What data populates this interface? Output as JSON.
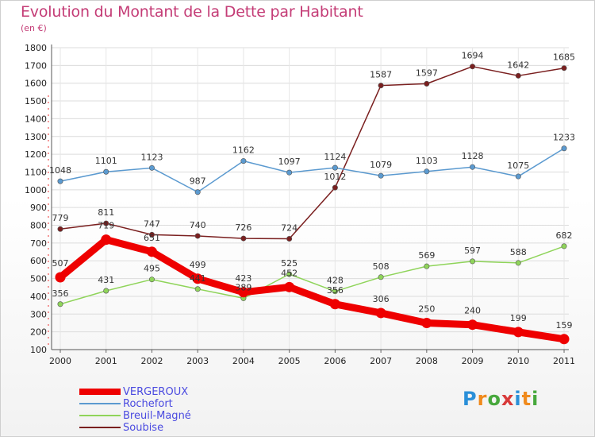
{
  "title": "Evolution du Montant de la Dette par Habitant",
  "subtitle": "(en €)",
  "logo": "Proxiti",
  "chart_data": {
    "type": "line",
    "title": "Evolution du Montant de la Dette par Habitant",
    "subtitle": "(en €)",
    "x": [
      "2000",
      "2001",
      "2002",
      "2003",
      "2004",
      "2005",
      "2006",
      "2007",
      "2008",
      "2009",
      "2010",
      "2011"
    ],
    "ylim": [
      100,
      1800
    ],
    "yticks": [
      100,
      200,
      300,
      400,
      500,
      600,
      700,
      800,
      900,
      1000,
      1100,
      1200,
      1300,
      1400,
      1500,
      1600,
      1700,
      1800
    ],
    "grid": true,
    "legend_position": "bottom-left",
    "series": [
      {
        "name": "Soubise",
        "color": "#7a1f1f",
        "values": [
          779,
          811,
          747,
          740,
          726,
          724,
          1012,
          1587,
          1597,
          1694,
          1642,
          1685
        ]
      },
      {
        "name": "Rochefort",
        "color": "#5b9ad0",
        "values": [
          1048,
          1101,
          1123,
          987,
          1162,
          1097,
          1124,
          1079,
          1103,
          1128,
          1075,
          1233
        ]
      },
      {
        "name": "Breuil-Magné",
        "color": "#8fd45a",
        "values": [
          356,
          431,
          495,
          441,
          389,
          525,
          428,
          508,
          569,
          597,
          588,
          682
        ]
      },
      {
        "name": "VERGEROUX",
        "color": "#ee0000",
        "values": [
          507,
          719,
          651,
          499,
          423,
          452,
          356,
          306,
          250,
          240,
          199,
          159
        ]
      }
    ],
    "legend_order": [
      "VERGEROUX",
      "Rochefort",
      "Breuil-Magné",
      "Soubise"
    ]
  }
}
